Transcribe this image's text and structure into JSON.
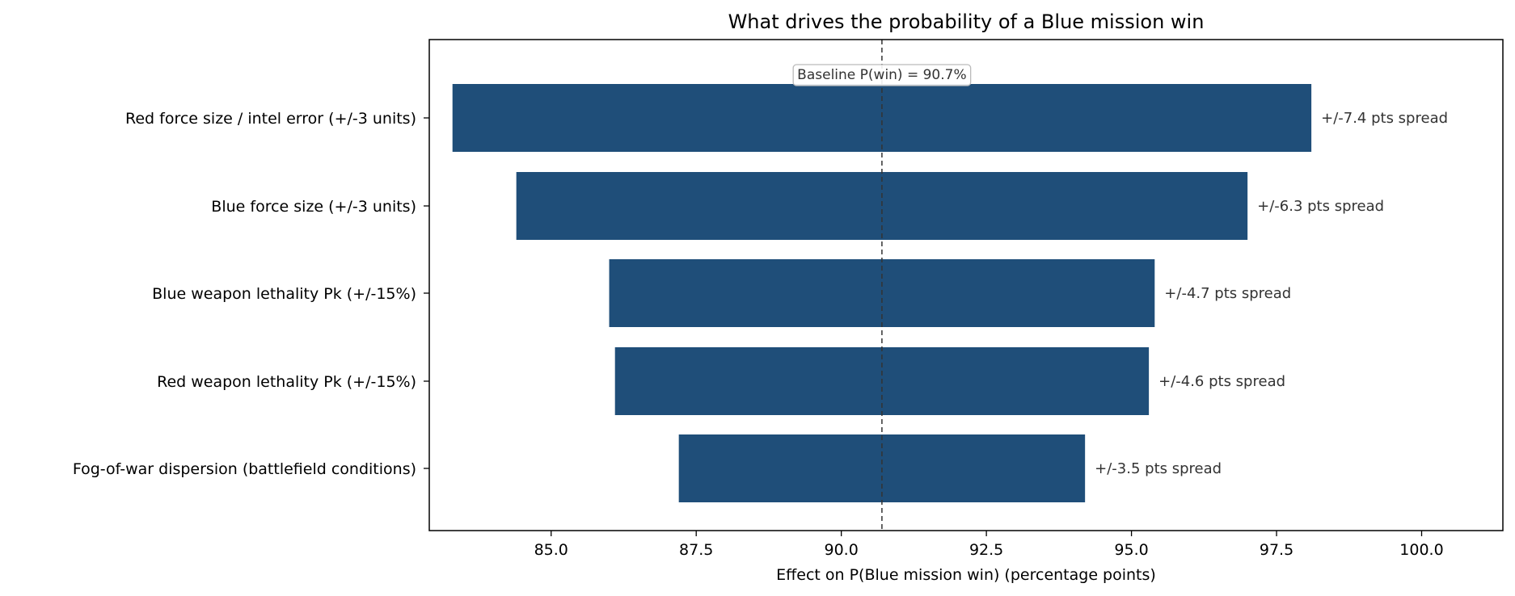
{
  "chart_data": {
    "type": "bar",
    "orientation": "horizontal",
    "title": "What drives the probability of a Blue mission win",
    "xlabel": "Effect on P(Blue mission win)  (percentage points)",
    "ylabel": "",
    "xlim": [
      82.9,
      101.4
    ],
    "xticks": [
      85.0,
      87.5,
      90.0,
      92.5,
      95.0,
      97.5,
      100.0
    ],
    "xtick_labels": [
      "85.0",
      "87.5",
      "90.0",
      "92.5",
      "95.0",
      "97.5",
      "100.0"
    ],
    "baseline": {
      "value": 90.7,
      "label": "Baseline P(win) = 90.7%"
    },
    "bar_color": "#1f4e79",
    "grid": false,
    "bars": [
      {
        "category": "Red force size / intel error (+/-3 units)",
        "low": 83.3,
        "high": 98.1,
        "annotation": "+/-7.4 pts spread"
      },
      {
        "category": "Blue force size (+/-3 units)",
        "low": 84.4,
        "high": 97.0,
        "annotation": "+/-6.3 pts spread"
      },
      {
        "category": "Blue weapon lethality Pk (+/-15%)",
        "low": 86.0,
        "high": 95.4,
        "annotation": "+/-4.7 pts spread"
      },
      {
        "category": "Red weapon lethality Pk (+/-15%)",
        "low": 86.1,
        "high": 95.3,
        "annotation": "+/-4.6 pts spread"
      },
      {
        "category": "Fog-of-war dispersion (battlefield conditions)",
        "low": 87.2,
        "high": 94.2,
        "annotation": "+/-3.5 pts spread"
      }
    ]
  }
}
